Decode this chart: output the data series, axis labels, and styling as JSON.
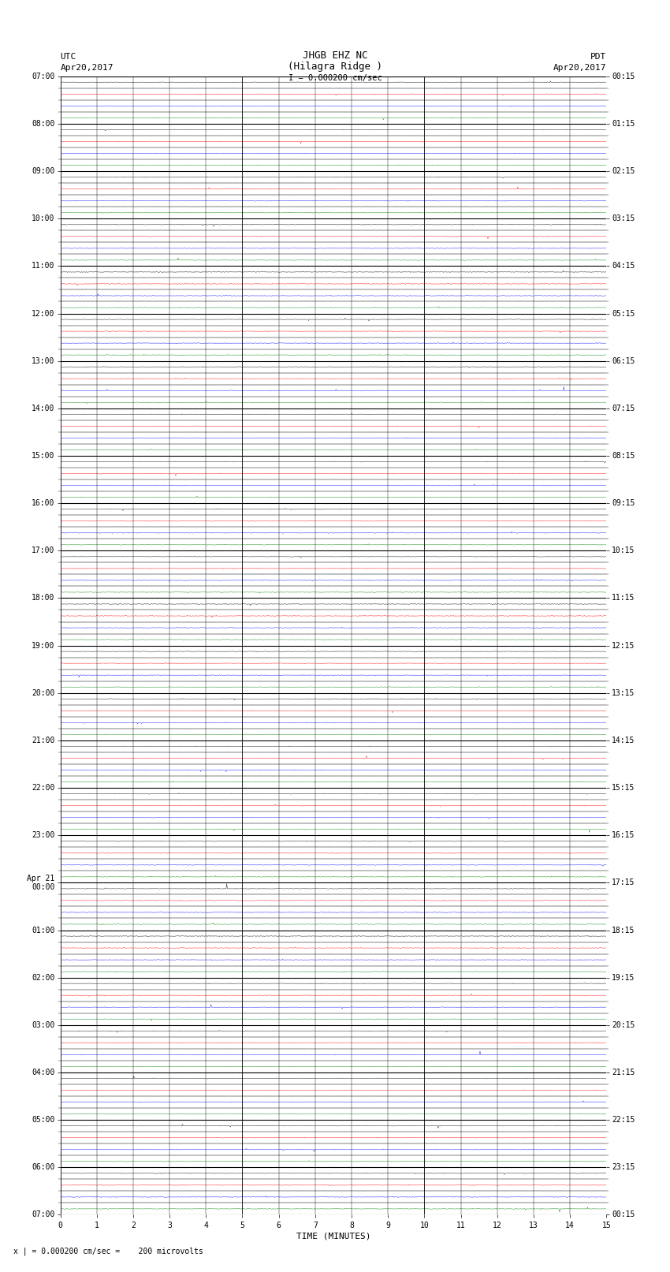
{
  "title_line1": "JHGB EHZ NC",
  "title_line2": "(Hilagra Ridge )",
  "scale_label": "I = 0.000200 cm/sec",
  "left_header_line1": "UTC",
  "left_header_line2": "Apr20,2017",
  "right_header_line1": "PDT",
  "right_header_line2": "Apr20,2017",
  "xlabel": "TIME (MINUTES)",
  "footer_text": "x | = 0.000200 cm/sec =    200 microvolts",
  "num_traces": 96,
  "minutes_per_trace": 15,
  "bg_color": "#ffffff",
  "seed": 12345,
  "trace_colors_cycle": [
    "#000000",
    "#ff0000",
    "#0000ff",
    "#008000"
  ],
  "noise_scale": 0.012,
  "spike_prob": 0.003,
  "spike_scale": 0.06
}
